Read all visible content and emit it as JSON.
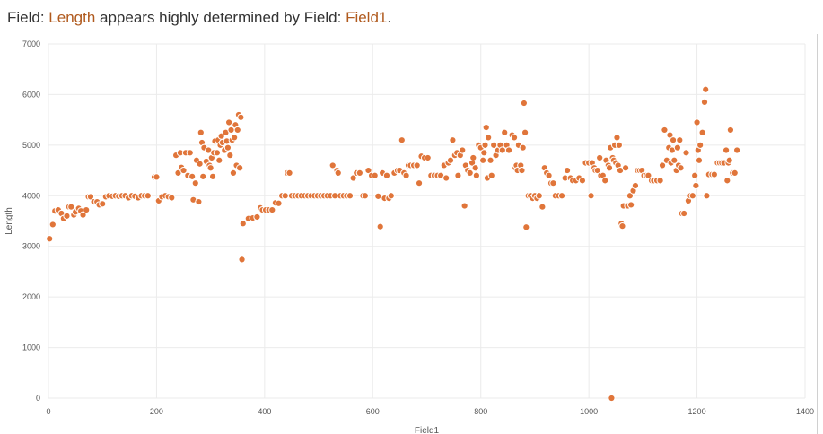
{
  "header": {
    "prefix": "Field: ",
    "field_a": "Length",
    "middle": " appears highly determined by Field: ",
    "field_b": "Field1",
    "suffix": "."
  },
  "colors": {
    "point": "#e0753a",
    "point_stroke": "#ffffff",
    "grid": "#ebebeb",
    "highlight_text": "#b05a1e"
  },
  "chart_data": {
    "type": "scatter",
    "xlabel": "Field1",
    "ylabel": "Length",
    "xlim": [
      0,
      1400
    ],
    "ylim": [
      0,
      7000
    ],
    "x_ticks": [
      0,
      200,
      400,
      600,
      800,
      1000,
      1200,
      1400
    ],
    "y_ticks": [
      0,
      1000,
      2000,
      3000,
      4000,
      5000,
      6000,
      7000
    ],
    "grid": true,
    "points": [
      [
        2,
        3150
      ],
      [
        8,
        3430
      ],
      [
        12,
        3700
      ],
      [
        18,
        3720
      ],
      [
        24,
        3650
      ],
      [
        28,
        3550
      ],
      [
        34,
        3600
      ],
      [
        38,
        3780
      ],
      [
        42,
        3780
      ],
      [
        47,
        3620
      ],
      [
        50,
        3680
      ],
      [
        56,
        3750
      ],
      [
        60,
        3700
      ],
      [
        64,
        3620
      ],
      [
        70,
        3720
      ],
      [
        74,
        3980
      ],
      [
        78,
        3980
      ],
      [
        84,
        3880
      ],
      [
        90,
        3880
      ],
      [
        94,
        3820
      ],
      [
        100,
        3840
      ],
      [
        106,
        3980
      ],
      [
        112,
        4000
      ],
      [
        118,
        3990
      ],
      [
        124,
        4000
      ],
      [
        130,
        3990
      ],
      [
        136,
        4000
      ],
      [
        142,
        4000
      ],
      [
        148,
        3960
      ],
      [
        154,
        4000
      ],
      [
        160,
        3990
      ],
      [
        166,
        3960
      ],
      [
        172,
        4000
      ],
      [
        178,
        4000
      ],
      [
        184,
        4000
      ],
      [
        196,
        4370
      ],
      [
        200,
        4370
      ],
      [
        204,
        3900
      ],
      [
        210,
        3980
      ],
      [
        216,
        4000
      ],
      [
        222,
        3980
      ],
      [
        228,
        3960
      ],
      [
        236,
        4800
      ],
      [
        240,
        4450
      ],
      [
        244,
        4850
      ],
      [
        246,
        4560
      ],
      [
        250,
        4500
      ],
      [
        254,
        4850
      ],
      [
        258,
        4400
      ],
      [
        262,
        4850
      ],
      [
        266,
        4380
      ],
      [
        268,
        3920
      ],
      [
        272,
        4250
      ],
      [
        274,
        4700
      ],
      [
        278,
        3880
      ],
      [
        280,
        4630
      ],
      [
        282,
        5250
      ],
      [
        284,
        5050
      ],
      [
        286,
        4380
      ],
      [
        288,
        4950
      ],
      [
        292,
        4680
      ],
      [
        296,
        4900
      ],
      [
        298,
        4600
      ],
      [
        300,
        4550
      ],
      [
        302,
        4750
      ],
      [
        304,
        4380
      ],
      [
        306,
        4850
      ],
      [
        308,
        5080
      ],
      [
        312,
        4850
      ],
      [
        314,
        5100
      ],
      [
        316,
        4700
      ],
      [
        318,
        5000
      ],
      [
        320,
        5180
      ],
      [
        322,
        5050
      ],
      [
        326,
        4900
      ],
      [
        328,
        5250
      ],
      [
        330,
        5080
      ],
      [
        332,
        4950
      ],
      [
        334,
        5450
      ],
      [
        336,
        4800
      ],
      [
        338,
        5300
      ],
      [
        340,
        5100
      ],
      [
        342,
        4450
      ],
      [
        344,
        5150
      ],
      [
        346,
        5400
      ],
      [
        348,
        4600
      ],
      [
        350,
        5300
      ],
      [
        352,
        5600
      ],
      [
        354,
        4550
      ],
      [
        356,
        5550
      ],
      [
        358,
        2740
      ],
      [
        360,
        3450
      ],
      [
        370,
        3550
      ],
      [
        378,
        3560
      ],
      [
        386,
        3580
      ],
      [
        392,
        3760
      ],
      [
        396,
        3720
      ],
      [
        402,
        3720
      ],
      [
        408,
        3720
      ],
      [
        414,
        3720
      ],
      [
        420,
        3860
      ],
      [
        426,
        3850
      ],
      [
        432,
        4000
      ],
      [
        438,
        4000
      ],
      [
        442,
        4450
      ],
      [
        446,
        4450
      ],
      [
        450,
        4000
      ],
      [
        456,
        4000
      ],
      [
        462,
        4000
      ],
      [
        468,
        4000
      ],
      [
        474,
        4000
      ],
      [
        480,
        4000
      ],
      [
        486,
        4000
      ],
      [
        492,
        4000
      ],
      [
        498,
        4000
      ],
      [
        504,
        4000
      ],
      [
        510,
        4000
      ],
      [
        516,
        4000
      ],
      [
        522,
        4000
      ],
      [
        526,
        4600
      ],
      [
        530,
        4000
      ],
      [
        534,
        4500
      ],
      [
        536,
        4450
      ],
      [
        540,
        4000
      ],
      [
        546,
        4000
      ],
      [
        552,
        4000
      ],
      [
        558,
        4000
      ],
      [
        564,
        4350
      ],
      [
        570,
        4450
      ],
      [
        576,
        4450
      ],
      [
        582,
        4000
      ],
      [
        586,
        4000
      ],
      [
        592,
        4500
      ],
      [
        598,
        4400
      ],
      [
        604,
        4400
      ],
      [
        610,
        3990
      ],
      [
        614,
        3390
      ],
      [
        618,
        4450
      ],
      [
        622,
        3950
      ],
      [
        626,
        4400
      ],
      [
        630,
        3950
      ],
      [
        634,
        4000
      ],
      [
        640,
        4450
      ],
      [
        646,
        4500
      ],
      [
        650,
        4500
      ],
      [
        654,
        5100
      ],
      [
        658,
        4450
      ],
      [
        662,
        4400
      ],
      [
        666,
        4600
      ],
      [
        670,
        4600
      ],
      [
        676,
        4600
      ],
      [
        682,
        4600
      ],
      [
        686,
        4250
      ],
      [
        690,
        4780
      ],
      [
        696,
        4750
      ],
      [
        702,
        4750
      ],
      [
        708,
        4400
      ],
      [
        714,
        4400
      ],
      [
        720,
        4400
      ],
      [
        726,
        4400
      ],
      [
        732,
        4600
      ],
      [
        736,
        4350
      ],
      [
        740,
        4650
      ],
      [
        744,
        4700
      ],
      [
        748,
        5100
      ],
      [
        752,
        4800
      ],
      [
        756,
        4850
      ],
      [
        758,
        4400
      ],
      [
        762,
        4800
      ],
      [
        766,
        4900
      ],
      [
        770,
        3800
      ],
      [
        772,
        4600
      ],
      [
        776,
        4500
      ],
      [
        780,
        4450
      ],
      [
        784,
        4650
      ],
      [
        786,
        4750
      ],
      [
        790,
        4550
      ],
      [
        792,
        4400
      ],
      [
        796,
        5000
      ],
      [
        800,
        4950
      ],
      [
        804,
        4700
      ],
      [
        806,
        4850
      ],
      [
        808,
        5000
      ],
      [
        810,
        5350
      ],
      [
        812,
        4350
      ],
      [
        814,
        5150
      ],
      [
        818,
        4700
      ],
      [
        820,
        4400
      ],
      [
        824,
        5000
      ],
      [
        828,
        4800
      ],
      [
        832,
        4900
      ],
      [
        836,
        5000
      ],
      [
        840,
        4900
      ],
      [
        844,
        5250
      ],
      [
        848,
        5000
      ],
      [
        852,
        4900
      ],
      [
        858,
        5200
      ],
      [
        862,
        5150
      ],
      [
        864,
        4550
      ],
      [
        866,
        4600
      ],
      [
        868,
        4500
      ],
      [
        870,
        5000
      ],
      [
        874,
        4600
      ],
      [
        876,
        4500
      ],
      [
        878,
        4950
      ],
      [
        880,
        5830
      ],
      [
        882,
        5250
      ],
      [
        884,
        3380
      ],
      [
        888,
        4000
      ],
      [
        892,
        4000
      ],
      [
        896,
        3950
      ],
      [
        900,
        4000
      ],
      [
        904,
        3950
      ],
      [
        908,
        4000
      ],
      [
        914,
        3780
      ],
      [
        918,
        4550
      ],
      [
        922,
        4450
      ],
      [
        926,
        4400
      ],
      [
        930,
        4250
      ],
      [
        934,
        4250
      ],
      [
        938,
        4000
      ],
      [
        944,
        4000
      ],
      [
        950,
        4000
      ],
      [
        956,
        4350
      ],
      [
        960,
        4500
      ],
      [
        966,
        4350
      ],
      [
        970,
        4300
      ],
      [
        976,
        4300
      ],
      [
        982,
        4350
      ],
      [
        988,
        4300
      ],
      [
        994,
        4650
      ],
      [
        1000,
        4650
      ],
      [
        1004,
        4000
      ],
      [
        1006,
        4650
      ],
      [
        1010,
        4550
      ],
      [
        1012,
        4500
      ],
      [
        1016,
        4500
      ],
      [
        1020,
        4750
      ],
      [
        1022,
        4400
      ],
      [
        1026,
        4400
      ],
      [
        1030,
        4300
      ],
      [
        1032,
        4700
      ],
      [
        1036,
        4600
      ],
      [
        1038,
        4550
      ],
      [
        1040,
        4950
      ],
      [
        1042,
        0
      ],
      [
        1044,
        4750
      ],
      [
        1046,
        4700
      ],
      [
        1048,
        5000
      ],
      [
        1050,
        4650
      ],
      [
        1052,
        5150
      ],
      [
        1054,
        4600
      ],
      [
        1056,
        5000
      ],
      [
        1058,
        4500
      ],
      [
        1060,
        3450
      ],
      [
        1062,
        3400
      ],
      [
        1064,
        3800
      ],
      [
        1068,
        4550
      ],
      [
        1072,
        3800
      ],
      [
        1076,
        4000
      ],
      [
        1078,
        3820
      ],
      [
        1082,
        4100
      ],
      [
        1086,
        4200
      ],
      [
        1090,
        4500
      ],
      [
        1094,
        4500
      ],
      [
        1098,
        4500
      ],
      [
        1102,
        4400
      ],
      [
        1106,
        4400
      ],
      [
        1110,
        4400
      ],
      [
        1116,
        4300
      ],
      [
        1120,
        4300
      ],
      [
        1126,
        4300
      ],
      [
        1132,
        4300
      ],
      [
        1136,
        4600
      ],
      [
        1140,
        5300
      ],
      [
        1144,
        4700
      ],
      [
        1148,
        4950
      ],
      [
        1150,
        5200
      ],
      [
        1152,
        4650
      ],
      [
        1154,
        4900
      ],
      [
        1156,
        5100
      ],
      [
        1158,
        4700
      ],
      [
        1162,
        4500
      ],
      [
        1164,
        4950
      ],
      [
        1166,
        4600
      ],
      [
        1168,
        5100
      ],
      [
        1170,
        4550
      ],
      [
        1172,
        3650
      ],
      [
        1176,
        3650
      ],
      [
        1180,
        4850
      ],
      [
        1184,
        3900
      ],
      [
        1188,
        4000
      ],
      [
        1192,
        4000
      ],
      [
        1196,
        4400
      ],
      [
        1198,
        4200
      ],
      [
        1200,
        5450
      ],
      [
        1202,
        4900
      ],
      [
        1204,
        4700
      ],
      [
        1206,
        5000
      ],
      [
        1210,
        5250
      ],
      [
        1214,
        5850
      ],
      [
        1216,
        6100
      ],
      [
        1218,
        4000
      ],
      [
        1222,
        4420
      ],
      [
        1228,
        4420
      ],
      [
        1232,
        4420
      ],
      [
        1238,
        4650
      ],
      [
        1242,
        4650
      ],
      [
        1246,
        4650
      ],
      [
        1250,
        4650
      ],
      [
        1254,
        4900
      ],
      [
        1256,
        4300
      ],
      [
        1258,
        4650
      ],
      [
        1260,
        4700
      ],
      [
        1262,
        5300
      ],
      [
        1266,
        4450
      ],
      [
        1270,
        4450
      ],
      [
        1274,
        4900
      ]
    ]
  }
}
